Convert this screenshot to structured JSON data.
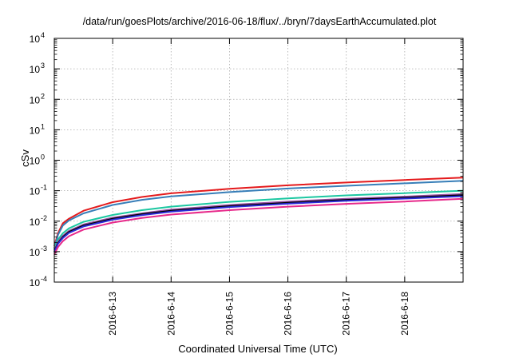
{
  "chart_data": {
    "type": "line",
    "title": "/data/run/goesPlots/archive/2016-06-18/flux/../bryn/7daysEarthAccumulated.plot",
    "xlabel": "Coordinated Universal Time (UTC)",
    "ylabel": "cSv",
    "x_ticks": [
      "2016-6-13",
      "2016-6-14",
      "2016-6-15",
      "2016-6-16",
      "2016-6-17",
      "2016-6-18"
    ],
    "y_ticks": [
      {
        "base": "10",
        "exp": "-4"
      },
      {
        "base": "10",
        "exp": "-3"
      },
      {
        "base": "10",
        "exp": "-2"
      },
      {
        "base": "10",
        "exp": "-1"
      },
      {
        "base": "10",
        "exp": "0"
      },
      {
        "base": "10",
        "exp": "1"
      },
      {
        "base": "10",
        "exp": "2"
      },
      {
        "base": "10",
        "exp": "3"
      },
      {
        "base": "10",
        "exp": "4"
      }
    ],
    "y_scale": "log",
    "ylim": [
      0.0001,
      10000
    ],
    "xlim": [
      "2016-06-12 00:00",
      "2016-06-19 00:00"
    ],
    "grid": true,
    "legend": "none",
    "series": [
      {
        "color": "#e41a1c",
        "x": [
          "2016-06-12 00:00",
          "2016-06-12 01:30",
          "2016-06-12 03:30",
          "2016-06-12 06:00",
          "2016-06-12 12:00",
          "2016-06-13 00:00",
          "2016-06-13 12:00",
          "2016-06-14 00:00",
          "2016-06-15 00:00",
          "2016-06-16 00:00",
          "2016-06-17 00:00",
          "2016-06-18 00:00",
          "2016-06-19 00:00"
        ],
        "y": [
          0.0015,
          0.004,
          0.0085,
          0.012,
          0.022,
          0.042,
          0.062,
          0.082,
          0.115,
          0.15,
          0.185,
          0.225,
          0.27
        ]
      },
      {
        "color": "#377eb8",
        "x": [
          "2016-06-12 00:00",
          "2016-06-12 01:30",
          "2016-06-12 03:30",
          "2016-06-12 06:00",
          "2016-06-12 12:00",
          "2016-06-13 00:00",
          "2016-06-13 12:00",
          "2016-06-14 00:00",
          "2016-06-15 00:00",
          "2016-06-16 00:00",
          "2016-06-17 00:00",
          "2016-06-18 00:00",
          "2016-06-19 00:00"
        ],
        "y": [
          0.0013,
          0.0035,
          0.0072,
          0.0105,
          0.018,
          0.034,
          0.05,
          0.065,
          0.09,
          0.118,
          0.145,
          0.175,
          0.21
        ]
      },
      {
        "color": "#1cc7a1",
        "x": [
          "2016-06-12 00:00",
          "2016-06-12 01:30",
          "2016-06-12 03:30",
          "2016-06-12 06:00",
          "2016-06-12 12:00",
          "2016-06-13 00:00",
          "2016-06-13 12:00",
          "2016-06-14 00:00",
          "2016-06-15 00:00",
          "2016-06-16 00:00",
          "2016-06-17 00:00",
          "2016-06-18 00:00",
          "2016-06-19 00:00"
        ],
        "y": [
          0.0012,
          0.0025,
          0.004,
          0.0058,
          0.0095,
          0.016,
          0.023,
          0.03,
          0.043,
          0.056,
          0.07,
          0.083,
          0.1
        ]
      },
      {
        "color": "#984ea3",
        "x": [
          "2016-06-12 00:00",
          "2016-06-12 01:30",
          "2016-06-12 03:30",
          "2016-06-12 06:00",
          "2016-06-12 12:00",
          "2016-06-13 00:00",
          "2016-06-13 12:00",
          "2016-06-14 00:00",
          "2016-06-15 00:00",
          "2016-06-16 00:00",
          "2016-06-17 00:00",
          "2016-06-18 00:00",
          "2016-06-19 00:00"
        ],
        "y": [
          0.0011,
          0.0021,
          0.0033,
          0.0048,
          0.0078,
          0.013,
          0.018,
          0.024,
          0.034,
          0.044,
          0.054,
          0.064,
          0.078
        ]
      },
      {
        "color": "#000000",
        "x": [
          "2016-06-12 00:00",
          "2016-06-12 01:30",
          "2016-06-12 03:30",
          "2016-06-12 06:00",
          "2016-06-12 12:00",
          "2016-06-13 00:00",
          "2016-06-13 12:00",
          "2016-06-14 00:00",
          "2016-06-15 00:00",
          "2016-06-16 00:00",
          "2016-06-17 00:00",
          "2016-06-18 00:00",
          "2016-06-19 00:00"
        ],
        "y": [
          0.001,
          0.0019,
          0.003,
          0.0044,
          0.0072,
          0.012,
          0.017,
          0.022,
          0.031,
          0.04,
          0.05,
          0.059,
          0.071
        ]
      },
      {
        "color": "#2b2bd9",
        "x": [
          "2016-06-12 00:00",
          "2016-06-12 01:30",
          "2016-06-12 03:30",
          "2016-06-12 06:00",
          "2016-06-12 12:00",
          "2016-06-13 00:00",
          "2016-06-13 12:00",
          "2016-06-14 00:00",
          "2016-06-15 00:00",
          "2016-06-16 00:00",
          "2016-06-17 00:00",
          "2016-06-18 00:00",
          "2016-06-19 00:00"
        ],
        "y": [
          0.00095,
          0.0018,
          0.0028,
          0.0041,
          0.0067,
          0.0112,
          0.0157,
          0.0205,
          0.029,
          0.0375,
          0.0465,
          0.055,
          0.066
        ]
      },
      {
        "color": "#e7298a",
        "x": [
          "2016-06-12 00:00",
          "2016-06-12 01:30",
          "2016-06-12 03:30",
          "2016-06-12 06:00",
          "2016-06-12 12:00",
          "2016-06-13 00:00",
          "2016-06-13 12:00",
          "2016-06-14 00:00",
          "2016-06-15 00:00",
          "2016-06-16 00:00",
          "2016-06-17 00:00",
          "2016-06-18 00:00",
          "2016-06-19 00:00"
        ],
        "y": [
          0.0008,
          0.0014,
          0.0022,
          0.0032,
          0.0053,
          0.009,
          0.0127,
          0.0165,
          0.023,
          0.03,
          0.037,
          0.044,
          0.054
        ]
      }
    ]
  }
}
